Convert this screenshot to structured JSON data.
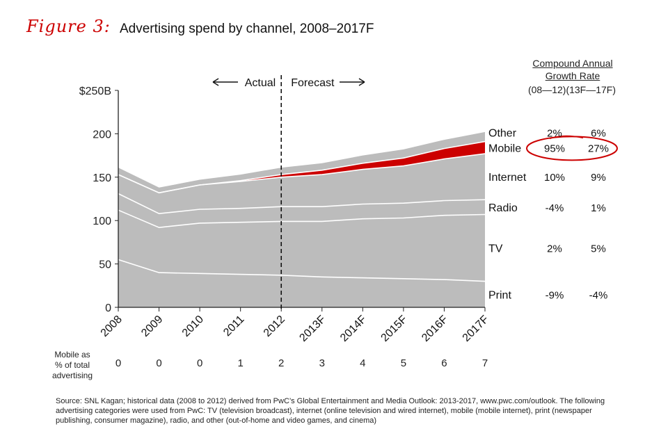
{
  "figure_label": "Figure 3:",
  "title": "Advertising spend by channel, 2008–2017F",
  "cagr_header": {
    "line1": "Compound Annual",
    "line2": "Growth Rate",
    "periods": "(08—12)(13F—17F)"
  },
  "mobile_pct_label": [
    "Mobile as",
    "% of total",
    "advertising"
  ],
  "annotations": {
    "actual": "Actual",
    "forecast": "Forecast"
  },
  "source_text": "Source: SNL Kagan; historical data (2008 to 2012) derived from PwC’s Global Entertainment and Media Outlook: 2013-2017, www.pwc.com/outlook. The following advertising categories were used from PwC: TV (television broadcast), internet (online television and wired internet), mobile (mobile internet), print (newspaper publishing, consumer magazine), radio, and other (out-of-home and video games, and cinema)",
  "colors": {
    "area": "#bcbcbc",
    "mobile": "#cc0000",
    "divider": "#ffffff",
    "highlight": "#cc0000"
  },
  "chart_data": {
    "type": "area",
    "stacked": true,
    "x": [
      "2008",
      "2009",
      "2010",
      "2011",
      "2012",
      "2013F",
      "2014F",
      "2015F",
      "2016F",
      "2017F"
    ],
    "ylim": [
      0,
      250
    ],
    "yticks": [
      "0",
      "50",
      "100",
      "150",
      "200",
      "$250B"
    ],
    "series": [
      {
        "name": "Print",
        "values": [
          55,
          40,
          39,
          38,
          37,
          35,
          34,
          33,
          32,
          30
        ],
        "cagr_08_12": "-9%",
        "cagr_13_17": "-4%"
      },
      {
        "name": "TV",
        "values": [
          57,
          52,
          58,
          60,
          62,
          64,
          68,
          70,
          74,
          77
        ],
        "cagr_08_12": "2%",
        "cagr_13_17": "5%"
      },
      {
        "name": "Radio",
        "values": [
          19,
          16,
          16,
          16,
          17,
          17,
          17,
          17,
          17,
          17
        ],
        "cagr_08_12": "-4%",
        "cagr_13_17": "1%"
      },
      {
        "name": "Internet",
        "values": [
          22,
          24,
          28,
          31,
          34,
          37,
          40,
          43,
          48,
          53
        ],
        "cagr_08_12": "10%",
        "cagr_13_17": "9%"
      },
      {
        "name": "Mobile",
        "values": [
          0,
          0,
          0,
          1,
          3,
          5,
          7,
          9,
          12,
          14
        ],
        "cagr_08_12": "95%",
        "cagr_13_17": "27%"
      },
      {
        "name": "Other",
        "values": [
          8,
          6,
          6,
          7,
          8,
          8,
          9,
          10,
          10,
          11
        ],
        "cagr_08_12": "2%",
        "cagr_13_17": "6%"
      }
    ],
    "mobile_pct_of_total": [
      0,
      0,
      0,
      1,
      2,
      3,
      4,
      5,
      6,
      7
    ],
    "actual_forecast_divider": "2012"
  }
}
